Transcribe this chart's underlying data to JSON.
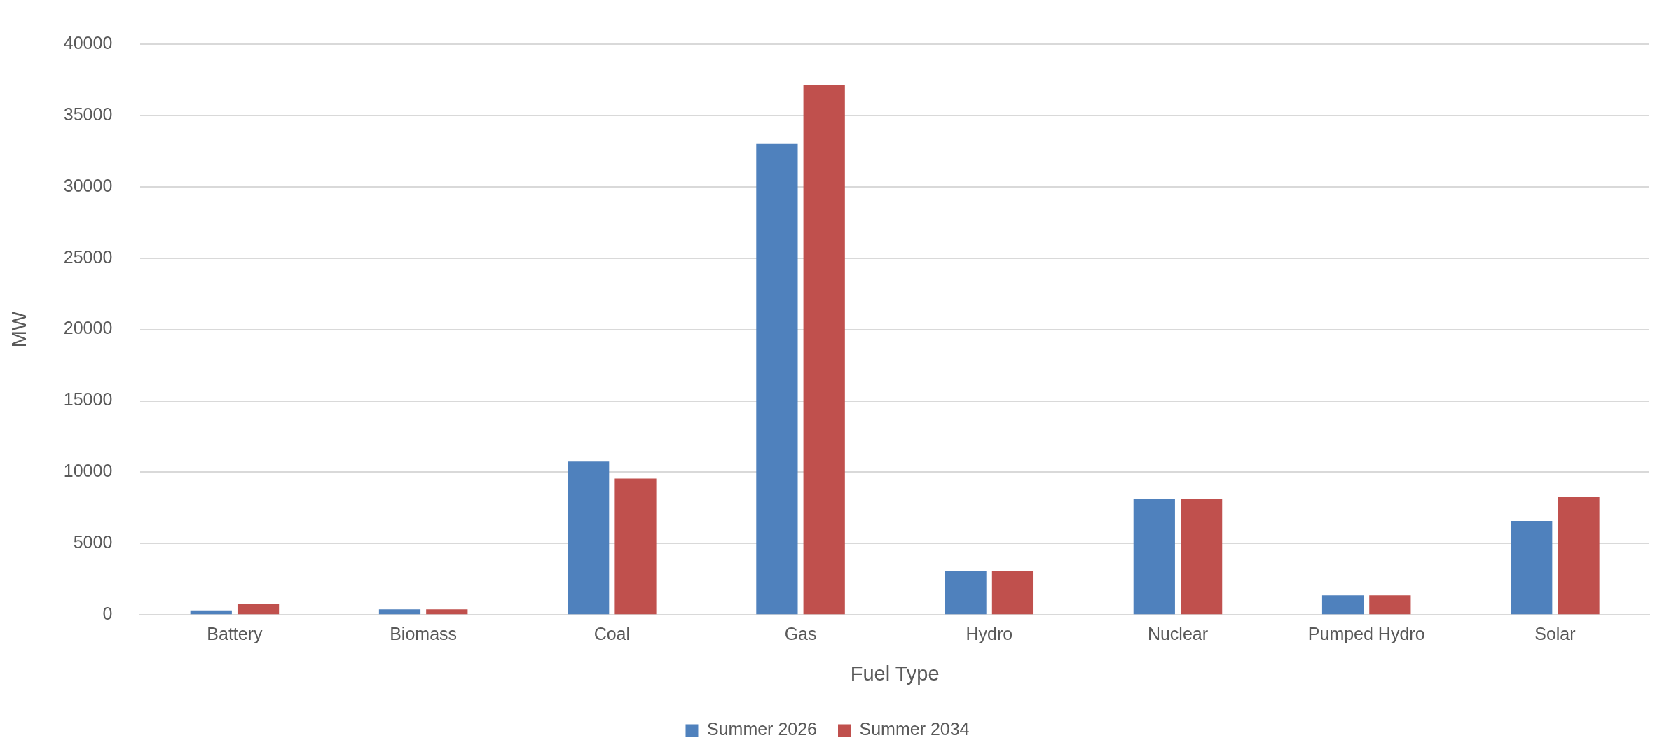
{
  "chart_data": {
    "type": "bar",
    "xlabel": "Fuel Type",
    "ylabel": "MW",
    "categories": [
      "Battery",
      "Biomass",
      "Coal",
      "Gas",
      "Hydro",
      "Nuclear",
      "Pumped Hydro",
      "Solar"
    ],
    "series": [
      {
        "name": "Summer 2026",
        "color": "#4f81bd",
        "values": [
          320,
          390,
          10740,
          33040,
          3060,
          8120,
          1370,
          6590
        ]
      },
      {
        "name": "Summer 2034",
        "color": "#c0504d",
        "values": [
          800,
          390,
          9550,
          37130,
          3060,
          8120,
          1370,
          8250
        ]
      }
    ],
    "ylim": [
      0,
      40000
    ],
    "yticks": [
      0,
      5000,
      10000,
      15000,
      20000,
      25000,
      30000,
      35000,
      40000
    ],
    "grid": "y",
    "legend": "bottom"
  }
}
